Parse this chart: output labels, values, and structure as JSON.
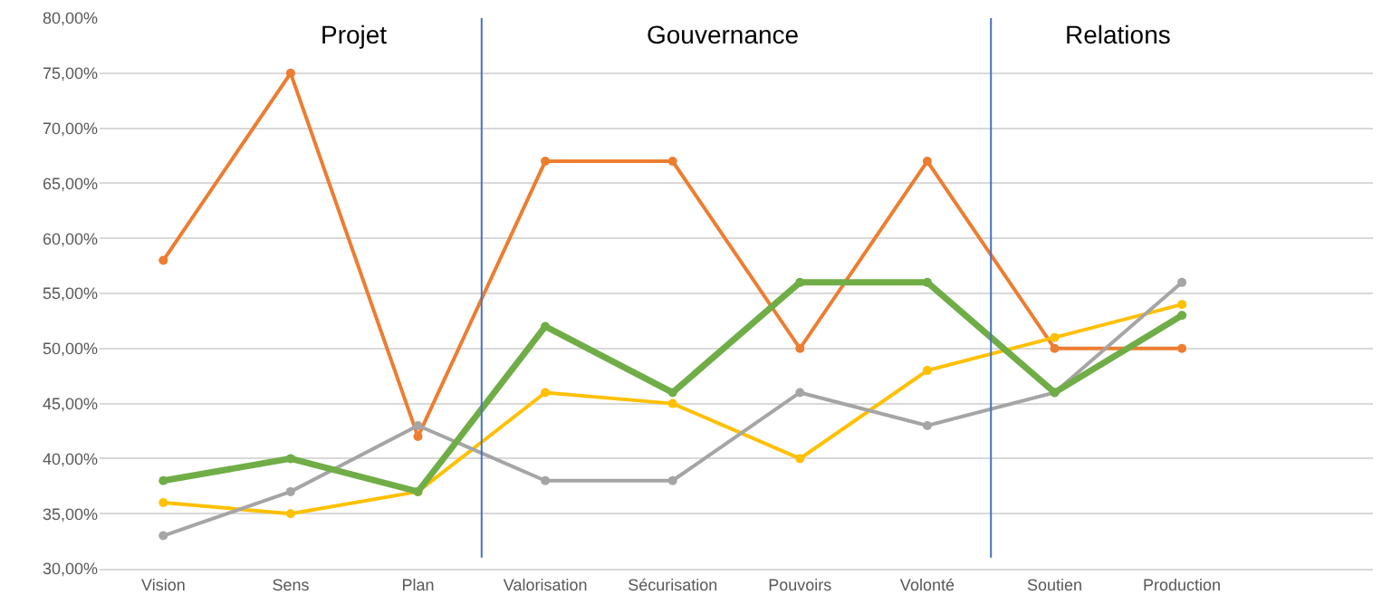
{
  "chart_data": {
    "type": "line",
    "categories": [
      "Vision",
      "Sens",
      "Plan",
      "Valorisation",
      "Sécurisation",
      "Pouvoirs",
      "Volonté",
      "Soutien",
      "Production",
      null
    ],
    "series": [
      {
        "color": "#ed7d31",
        "values": [
          58,
          75,
          42,
          67,
          67,
          50,
          67,
          50,
          50,
          null
        ]
      },
      {
        "color": "#70ad47",
        "values": [
          38,
          40,
          37,
          52,
          46,
          56,
          56,
          46,
          53,
          null
        ]
      },
      {
        "color": "#ffc000",
        "values": [
          36,
          35,
          37,
          46,
          45,
          40,
          48,
          51,
          54,
          null
        ]
      },
      {
        "color": "#a5a5a5",
        "values": [
          33,
          37,
          43,
          38,
          38,
          46,
          43,
          46,
          56,
          null
        ]
      }
    ],
    "ylim": [
      30,
      80
    ],
    "yticks": [
      {
        "value": 30,
        "label": "30,00%"
      },
      {
        "value": 35,
        "label": "35,00%"
      },
      {
        "value": 40,
        "label": "40,00%"
      },
      {
        "value": 45,
        "label": "45,00%"
      },
      {
        "value": 50,
        "label": "50,00%"
      },
      {
        "value": 55,
        "label": "55,00%"
      },
      {
        "value": 60,
        "label": "60,00%"
      },
      {
        "value": 65,
        "label": "65,00%"
      },
      {
        "value": 70,
        "label": "70,00%"
      },
      {
        "value": 75,
        "label": "75,00%"
      },
      {
        "value": 80,
        "label": "80,00%"
      }
    ],
    "annotations": [
      "Projet",
      "Gouvernance",
      "Relations"
    ],
    "grid": "y",
    "marker": "circle",
    "line_style": "solid"
  }
}
